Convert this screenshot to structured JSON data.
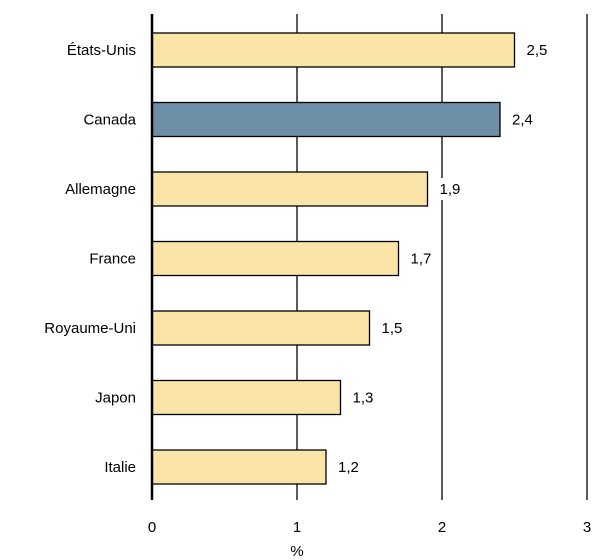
{
  "chart_data": {
    "type": "bar",
    "orientation": "horizontal",
    "categories": [
      "États-Unis",
      "Canada",
      "Allemagne",
      "France",
      "Royaume-Uni",
      "Japon",
      "Italie"
    ],
    "values": [
      2.5,
      2.4,
      1.9,
      1.7,
      1.5,
      1.3,
      1.2
    ],
    "value_labels": [
      "2,5",
      "2,4",
      "1,9",
      "1,7",
      "1,5",
      "1,3",
      "1,2"
    ],
    "highlight": "Canada",
    "colors": {
      "default": "#fbe4a8",
      "highlight": "#6d8ea7",
      "outline": "#000000",
      "grid": "#000000"
    },
    "xlim": [
      0,
      3
    ],
    "xticks": [
      0,
      1,
      2,
      3
    ],
    "xtick_labels": [
      "0",
      "1",
      "2",
      "3"
    ],
    "xlabel": "%",
    "ylabel": "",
    "title": "",
    "grid": "vertical"
  }
}
